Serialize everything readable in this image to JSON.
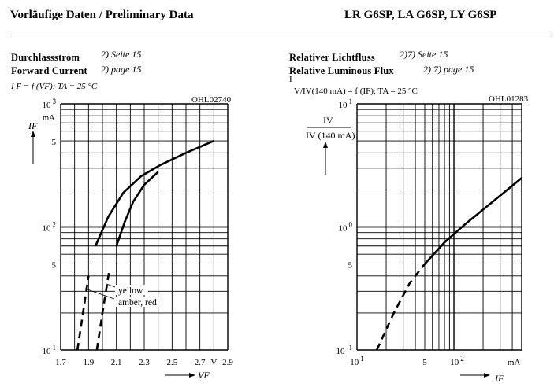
{
  "header": {
    "left_title": "Vorläufige Daten / Preliminary Data",
    "right_title": "LR G6SP, LA G6SP, LY G6SP"
  },
  "left": {
    "title_de": "Durchlassstrom",
    "title_en": "Forward Current",
    "note_de": "2) Seite 15",
    "note_en": "2) page 15",
    "formula": "I F = f (VF); TA = 25 °C",
    "code": "OHL02740"
  },
  "right": {
    "title_de": "Relativer Lichtfluss",
    "title_en": "Relative Luminous Flux",
    "note_de": "2)7) Seite 15",
    "note_en": "2) 7) page 15",
    "formula_i": "I",
    "formula": "V/IV(140 mA) = f (IF); TA = 25 °C",
    "code": "OHL01283"
  },
  "chart_data": [
    {
      "type": "line",
      "xscale": "linear",
      "yscale": "log",
      "xlim": [
        1.7,
        2.9
      ],
      "ylim": [
        10,
        1000
      ],
      "x_ticks": [
        "1.7",
        "1.9",
        "2.1",
        "2.3",
        "2.5",
        "2.7",
        "V",
        "2.9"
      ],
      "y_ticks": [
        {
          "mantissa": "10",
          "exp": "1",
          "v": 10
        },
        {
          "mantissa": "5",
          "exp": "",
          "v": 50
        },
        {
          "mantissa": "10",
          "exp": "2",
          "v": 100
        },
        {
          "mantissa": "5",
          "exp": "",
          "v": 500
        },
        {
          "mantissa": "10",
          "exp": "3",
          "v": 1000
        }
      ],
      "ylabel": "IF",
      "yunit": "mA",
      "xlabel": "VF",
      "annotations": [
        "yellow",
        "amber, red"
      ],
      "series": [
        {
          "name": "yellow",
          "dashed_upto": 50,
          "points": [
            [
              1.82,
              10
            ],
            [
              1.86,
              20
            ],
            [
              1.9,
              40
            ],
            [
              1.95,
              70
            ],
            [
              2.04,
              120
            ],
            [
              2.15,
              190
            ],
            [
              2.28,
              260
            ],
            [
              2.42,
              320
            ],
            [
              2.6,
              400
            ],
            [
              2.8,
              500
            ]
          ]
        },
        {
          "name": "amber, red",
          "dashed_upto": 50,
          "points": [
            [
              1.96,
              10
            ],
            [
              2.0,
              20
            ],
            [
              2.05,
              45
            ],
            [
              2.1,
              70
            ],
            [
              2.16,
              110
            ],
            [
              2.22,
              160
            ],
            [
              2.3,
              220
            ],
            [
              2.4,
              280
            ]
          ]
        }
      ]
    },
    {
      "type": "line",
      "xscale": "log",
      "yscale": "log",
      "xlim": [
        1,
        50
      ],
      "ylim": [
        0.1,
        10
      ],
      "x_ticks": [
        {
          "mantissa": "10",
          "exp": "1",
          "v": 1
        },
        {
          "mantissa": "5",
          "exp": "",
          "v": 5
        },
        {
          "mantissa": "10",
          "exp": "2",
          "v": 10
        },
        {
          "mantissa": "mA",
          "exp": "",
          "v": 40
        }
      ],
      "y_ticks": [
        {
          "mantissa": "10",
          "exp": "-1",
          "v": 0.1
        },
        {
          "mantissa": "5",
          "exp": "",
          "v": 0.5
        },
        {
          "mantissa": "10",
          "exp": "0",
          "v": 1
        },
        {
          "mantissa": "10",
          "exp": "1",
          "v": 10
        }
      ],
      "ylabel_num": "IV",
      "ylabel_den": "IV (140 mA)",
      "xlabel": "IF",
      "series": [
        {
          "name": "",
          "dashed_upto": 5,
          "points": [
            [
              1.6,
              0.1
            ],
            [
              2.4,
              0.2
            ],
            [
              3.5,
              0.35
            ],
            [
              5,
              0.5
            ],
            [
              8,
              0.75
            ],
            [
              13,
              1.05
            ],
            [
              25,
              1.6
            ],
            [
              50,
              2.5
            ]
          ]
        }
      ]
    }
  ]
}
